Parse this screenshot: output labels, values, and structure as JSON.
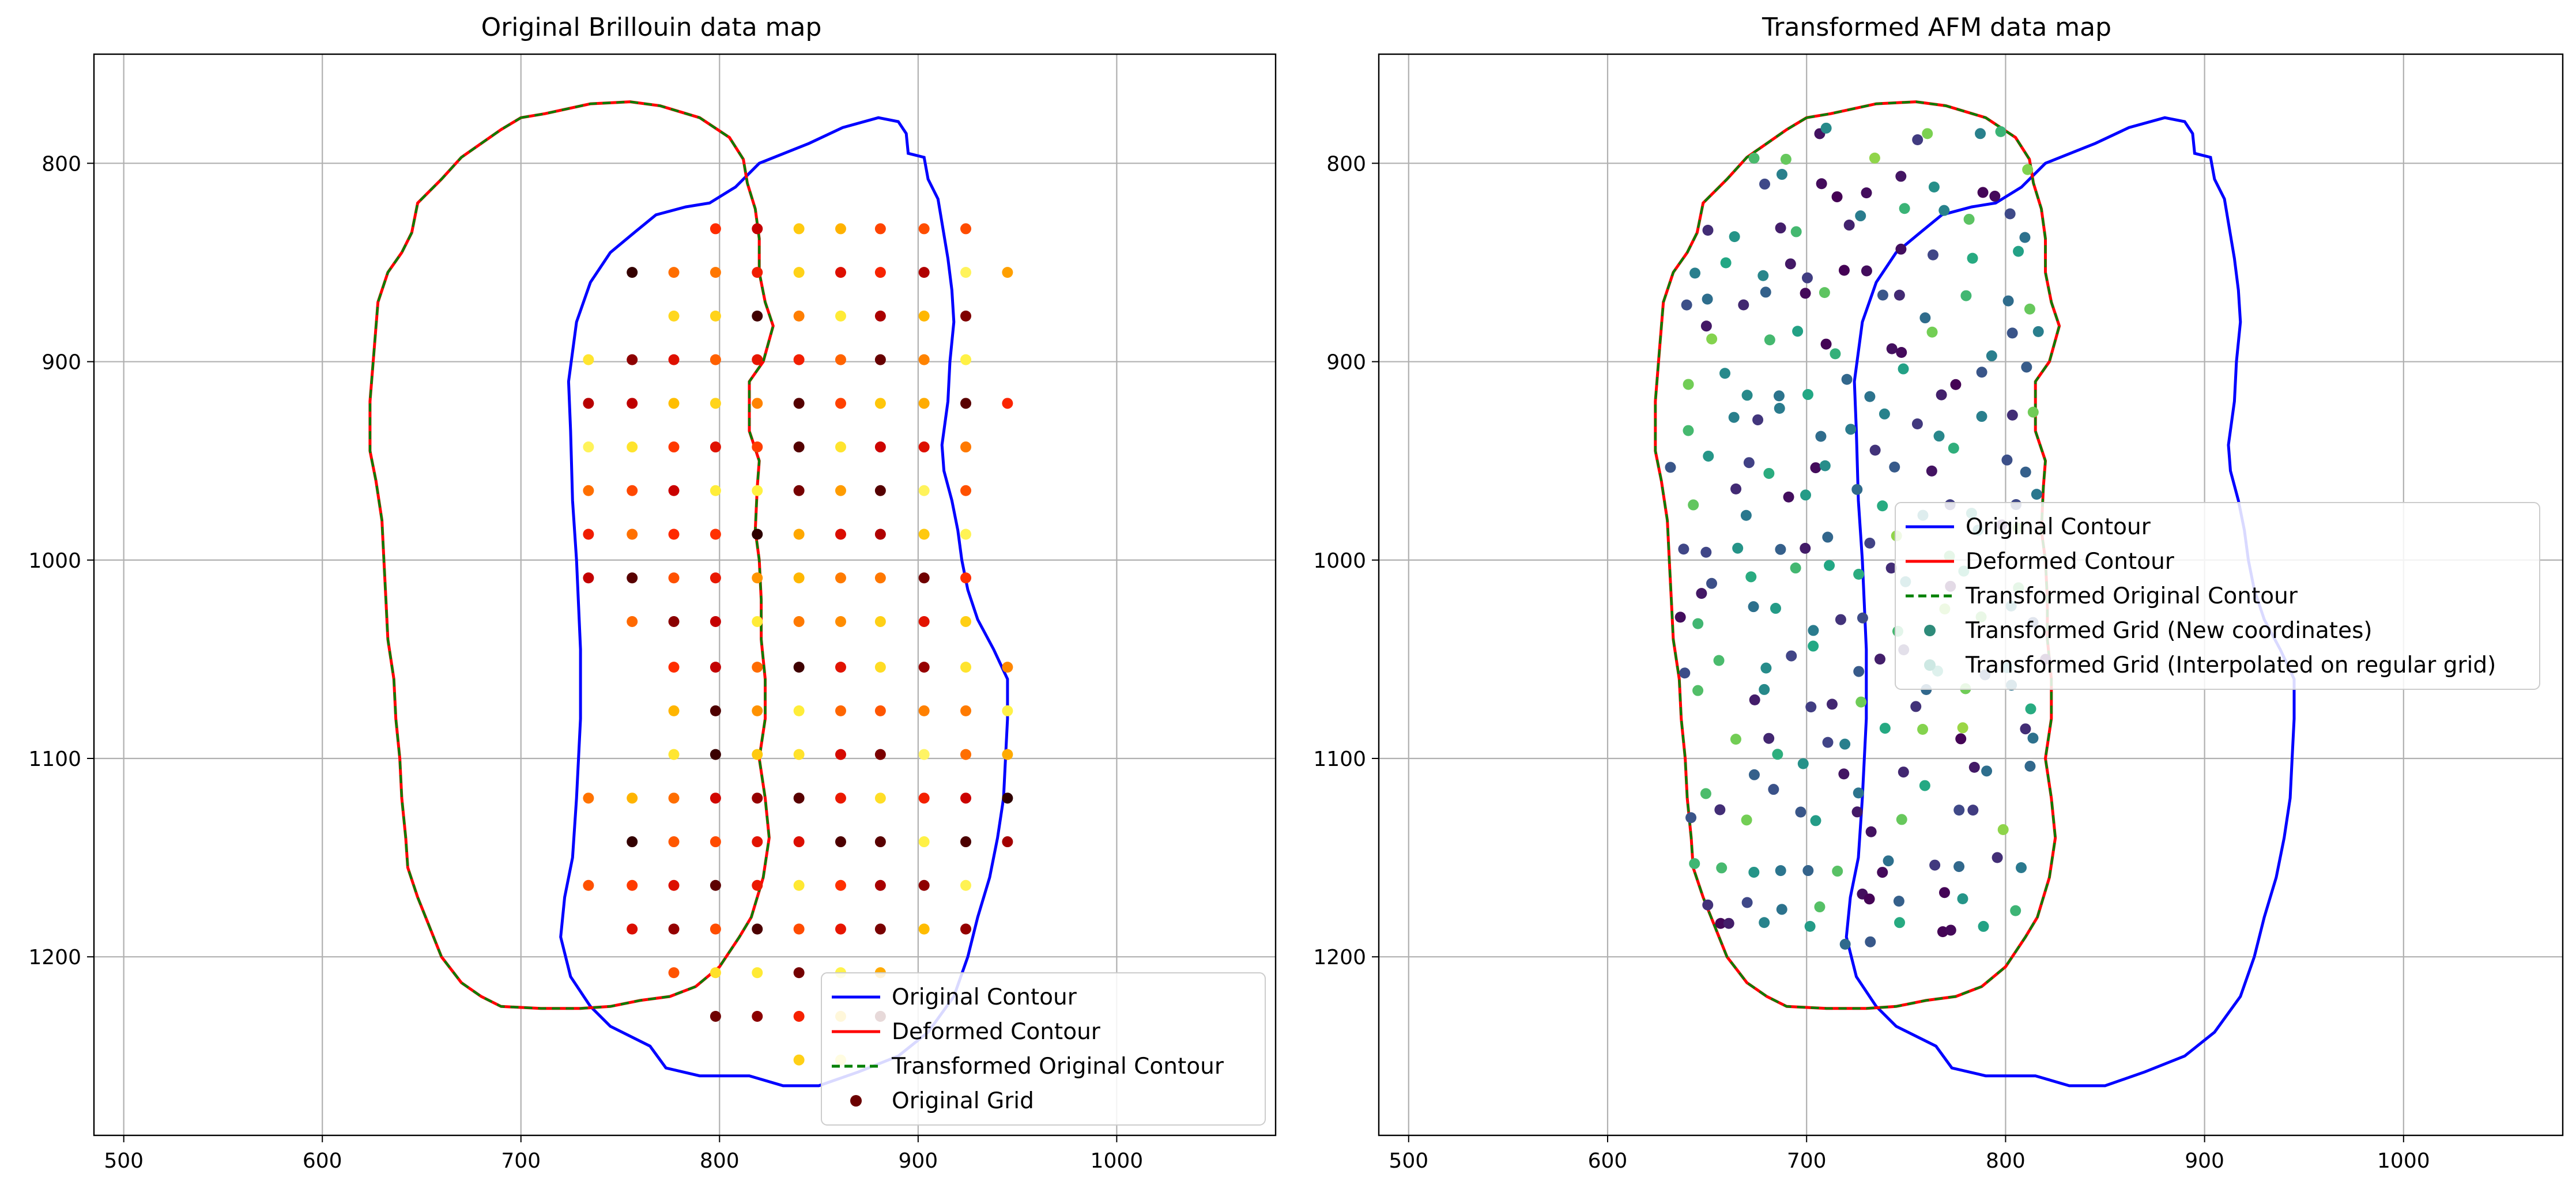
{
  "chart_data": [
    {
      "type": "scatter",
      "title": "Original Brillouin data map",
      "xlabel": "",
      "ylabel": "",
      "xlim": [
        485,
        1080
      ],
      "ylim": [
        1290,
        745
      ],
      "y_inverted": true,
      "grid": true,
      "x_ticks": [
        "500",
        "600",
        "700",
        "800",
        "900",
        "1000"
      ],
      "y_ticks": [
        "800",
        "900",
        "1000",
        "1100",
        "1200"
      ],
      "legend_position": "lower-right",
      "legend": [
        {
          "label": "Original Contour",
          "style": "line",
          "color": "#0000ff"
        },
        {
          "label": "Deformed Contour",
          "style": "line",
          "color": "#ff0000"
        },
        {
          "label": "Transformed Original Contour",
          "style": "dashed",
          "color": "#008000"
        },
        {
          "label": "Original Grid",
          "style": "marker",
          "color": "#6b0000"
        }
      ],
      "colormap": "hot",
      "scatter_series": "Original Grid",
      "grid_x": [
        734,
        756,
        777,
        798,
        819,
        840,
        861,
        881,
        903,
        924,
        945
      ],
      "grid_y": [
        833,
        855,
        877,
        899,
        921,
        943,
        965,
        987,
        1009,
        1031,
        1054,
        1076,
        1098,
        1120,
        1142,
        1164,
        1186,
        1208,
        1230,
        1252
      ],
      "grid_mask": [
        "...xxxxxxx.",
        ".xxxxxxxxxx",
        "..xxxxxxxx.",
        "xxxxxxxxxx.",
        "xxxxxxxxxxx",
        "xxxxxxxxxx.",
        "xxxxxxxxxx.",
        "xxxxxxxxxx.",
        "xxxxxxxxxx.",
        ".xxxxxxxxx.",
        "..xxxxxxxxx",
        "..xxxxxxxxx",
        "..xxxxxxxxx",
        "xxxxxxxxxxx",
        ".xxxxxxxxxx",
        "xxxxxxxxxx.",
        ".xxxxxxxxx.",
        "..xxxxxx...",
        "...xxxxx...",
        ".....xx...."
      ],
      "contours": {
        "original_color": "#0000ff",
        "deformed_color": "#ff0000",
        "transformed_color": "#008000",
        "original": [
          [
            880,
            777
          ],
          [
            890,
            779
          ],
          [
            894,
            785
          ],
          [
            895,
            795
          ],
          [
            903,
            797
          ],
          [
            905,
            808
          ],
          [
            910,
            818
          ],
          [
            912,
            830
          ],
          [
            915,
            848
          ],
          [
            917,
            864
          ],
          [
            918,
            880
          ],
          [
            916,
            900
          ],
          [
            915,
            920
          ],
          [
            912,
            942
          ],
          [
            913,
            955
          ],
          [
            917,
            970
          ],
          [
            920,
            985
          ],
          [
            922,
            1000
          ],
          [
            925,
            1015
          ],
          [
            930,
            1030
          ],
          [
            938,
            1045
          ],
          [
            945,
            1060
          ],
          [
            945,
            1080
          ],
          [
            944,
            1100
          ],
          [
            943,
            1120
          ],
          [
            940,
            1140
          ],
          [
            936,
            1160
          ],
          [
            930,
            1180
          ],
          [
            925,
            1200
          ],
          [
            918,
            1220
          ],
          [
            905,
            1238
          ],
          [
            890,
            1250
          ],
          [
            870,
            1258
          ],
          [
            850,
            1265
          ],
          [
            832,
            1265
          ],
          [
            815,
            1260
          ],
          [
            790,
            1260
          ],
          [
            773,
            1256
          ],
          [
            765,
            1245
          ],
          [
            745,
            1235
          ],
          [
            735,
            1225
          ],
          [
            725,
            1210
          ],
          [
            720,
            1190
          ],
          [
            722,
            1170
          ],
          [
            726,
            1150
          ],
          [
            728,
            1120
          ],
          [
            730,
            1080
          ],
          [
            730,
            1045
          ],
          [
            728,
            1000
          ],
          [
            726,
            970
          ],
          [
            725,
            935
          ],
          [
            724,
            910
          ],
          [
            728,
            880
          ],
          [
            735,
            860
          ],
          [
            745,
            845
          ],
          [
            757,
            835
          ],
          [
            768,
            826
          ],
          [
            783,
            822
          ],
          [
            795,
            820
          ],
          [
            808,
            812
          ],
          [
            820,
            800
          ],
          [
            845,
            790
          ],
          [
            862,
            782
          ]
        ],
        "deformed": [
          [
            700,
            777
          ],
          [
            712,
            775
          ],
          [
            735,
            770
          ],
          [
            755,
            769
          ],
          [
            770,
            771
          ],
          [
            790,
            777
          ],
          [
            805,
            787
          ],
          [
            812,
            798
          ],
          [
            814,
            810
          ],
          [
            818,
            823
          ],
          [
            820,
            838
          ],
          [
            820,
            855
          ],
          [
            823,
            870
          ],
          [
            827,
            882
          ],
          [
            822,
            900
          ],
          [
            815,
            910
          ],
          [
            815,
            920
          ],
          [
            815,
            935
          ],
          [
            820,
            950
          ],
          [
            819,
            963
          ],
          [
            818,
            985
          ],
          [
            820,
            1000
          ],
          [
            821,
            1020
          ],
          [
            821,
            1040
          ],
          [
            823,
            1060
          ],
          [
            823,
            1080
          ],
          [
            820,
            1100
          ],
          [
            823,
            1120
          ],
          [
            825,
            1140
          ],
          [
            822,
            1160
          ],
          [
            816,
            1180
          ],
          [
            810,
            1190
          ],
          [
            800,
            1205
          ],
          [
            788,
            1215
          ],
          [
            775,
            1220
          ],
          [
            760,
            1222
          ],
          [
            745,
            1225
          ],
          [
            730,
            1226
          ],
          [
            710,
            1226
          ],
          [
            690,
            1225
          ],
          [
            680,
            1220
          ],
          [
            670,
            1213
          ],
          [
            660,
            1200
          ],
          [
            654,
            1185
          ],
          [
            648,
            1170
          ],
          [
            643,
            1155
          ],
          [
            642,
            1140
          ],
          [
            640,
            1120
          ],
          [
            639,
            1100
          ],
          [
            637,
            1080
          ],
          [
            636,
            1060
          ],
          [
            633,
            1040
          ],
          [
            632,
            1020
          ],
          [
            631,
            1000
          ],
          [
            630,
            980
          ],
          [
            627,
            960
          ],
          [
            624,
            945
          ],
          [
            624,
            920
          ],
          [
            626,
            895
          ],
          [
            628,
            870
          ],
          [
            633,
            855
          ],
          [
            640,
            845
          ],
          [
            645,
            835
          ],
          [
            648,
            820
          ],
          [
            660,
            808
          ],
          [
            670,
            797
          ],
          [
            680,
            790
          ],
          [
            690,
            783
          ]
        ]
      }
    },
    {
      "type": "scatter",
      "title": "Transformed AFM data map",
      "xlabel": "",
      "ylabel": "",
      "xlim": [
        485,
        1080
      ],
      "ylim": [
        1290,
        745
      ],
      "y_inverted": true,
      "grid": true,
      "x_ticks": [
        "500",
        "600",
        "700",
        "800",
        "900",
        "1000"
      ],
      "y_ticks": [
        "800",
        "900",
        "1000",
        "1100",
        "1200"
      ],
      "legend_position": "center-right",
      "legend": [
        {
          "label": "Original Contour",
          "style": "line",
          "color": "#0000ff"
        },
        {
          "label": "Deformed Contour",
          "style": "line",
          "color": "#ff0000"
        },
        {
          "label": "Transformed Original Contour",
          "style": "dashed",
          "color": "#008000"
        },
        {
          "label": "Transformed Grid (New coordinates)",
          "style": "marker",
          "color": "#2e8b7a"
        },
        {
          "label": "Transformed Grid (Interpolated on regular grid)",
          "style": "marker",
          "color": "#cde8e3"
        }
      ],
      "colormap": "viridis",
      "scatter_series": "Transformed Grid (New coordinates)",
      "grid_x": [
        636,
        652,
        668,
        684,
        700,
        716,
        732,
        748,
        764,
        780,
        796,
        812
      ],
      "grid_y": [
        790,
        810,
        830,
        850,
        870,
        890,
        910,
        930,
        950,
        970,
        990,
        1010,
        1030,
        1050,
        1070,
        1090,
        1110,
        1130,
        1150,
        1170,
        1190
      ],
      "jitter": 8
    }
  ]
}
